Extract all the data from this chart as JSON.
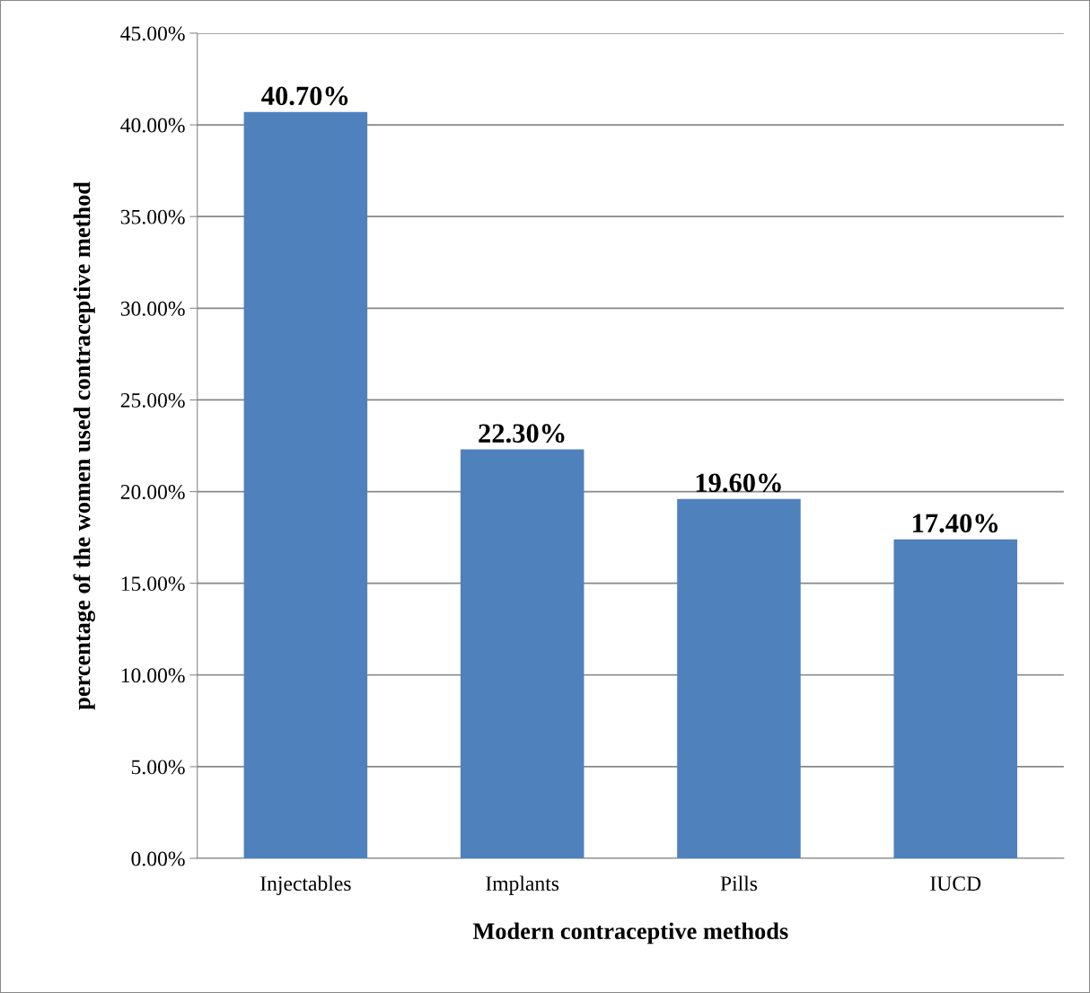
{
  "chart_data": {
    "type": "bar",
    "xlabel": "Modern contraceptive methods",
    "ylabel": "percentage of the women used contraceptive method",
    "categories": [
      "Injectables",
      "Implants",
      "Pills",
      "IUCD"
    ],
    "values": [
      40.7,
      22.3,
      19.6,
      17.4
    ],
    "value_labels": [
      "40.70%",
      "22.30%",
      "19.60%",
      "17.40%"
    ],
    "color": "#4f81bd",
    "ylim": [
      0,
      45
    ],
    "yticks": [
      {
        "value": 0,
        "label": "0.00%"
      },
      {
        "value": 5,
        "label": "5.00%"
      },
      {
        "value": 10,
        "label": "10.00%"
      },
      {
        "value": 15,
        "label": "15.00%"
      },
      {
        "value": 20,
        "label": "20.00%"
      },
      {
        "value": 25,
        "label": "25.00%"
      },
      {
        "value": 30,
        "label": "30.00%"
      },
      {
        "value": 35,
        "label": "35.00%"
      },
      {
        "value": 40,
        "label": "40.00%"
      },
      {
        "value": 45,
        "label": "45.00%"
      }
    ],
    "grid": "y",
    "legend": false
  }
}
